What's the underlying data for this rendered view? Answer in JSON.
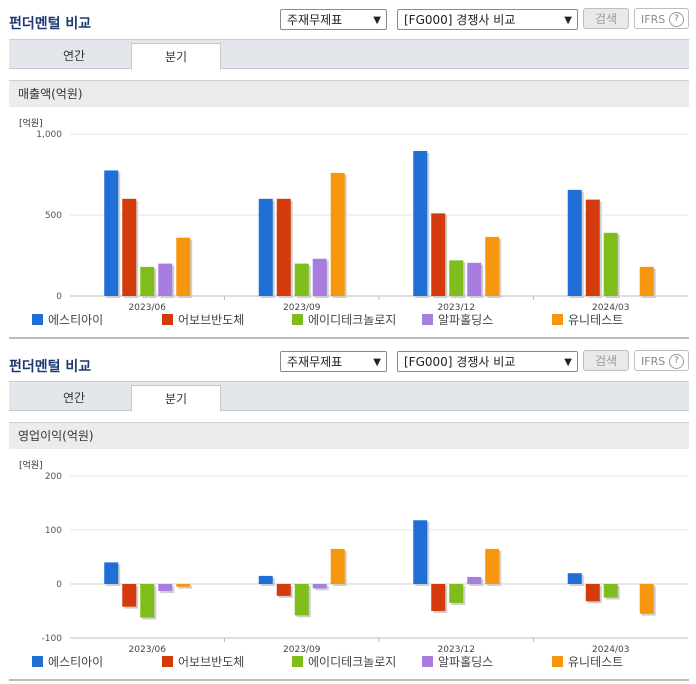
{
  "panels": [
    {
      "title": "펀더멘털 비교",
      "select_type": "주재무제표",
      "select_compare": "[FG000] 경쟁사 비교",
      "search_label": "검색",
      "ifrs_label": "IFRS",
      "ifrs_help": "?",
      "tabs": [
        {
          "label": "연간"
        },
        {
          "label": "분기"
        }
      ],
      "active_tab": 1,
      "chart_header": "매출액(억원)"
    },
    {
      "title": "펀더멘털 비교",
      "select_type": "주재무제표",
      "select_compare": "[FG000] 경쟁사 비교",
      "search_label": "검색",
      "ifrs_label": "IFRS",
      "ifrs_help": "?",
      "tabs": [
        {
          "label": "연간"
        },
        {
          "label": "분기"
        }
      ],
      "active_tab": 1,
      "chart_header": "영업이익(억원)"
    }
  ],
  "chart_data": [
    {
      "type": "bar",
      "unit_label": "[억원]",
      "categories": [
        "2023/06",
        "2023/09",
        "2023/12",
        "2024/03"
      ],
      "ylim": [
        0,
        1000
      ],
      "yticks": [
        0,
        500,
        1000
      ],
      "ytick_labels": [
        "0",
        "500",
        "1,000"
      ],
      "grid": true,
      "legend_position": "bottom",
      "series": [
        {
          "name": "에스티아이",
          "color": "#1f6fd6",
          "values": [
            775,
            600,
            895,
            655
          ]
        },
        {
          "name": "어보브반도체",
          "color": "#d33a0c",
          "values": [
            600,
            600,
            510,
            595
          ]
        },
        {
          "name": "에이디테크놀로지",
          "color": "#7fbd1b",
          "values": [
            180,
            200,
            220,
            390
          ]
        },
        {
          "name": "알파홀딩스",
          "color": "#a77de0",
          "values": [
            200,
            230,
            205,
            null
          ]
        },
        {
          "name": "유니테스트",
          "color": "#f5960c",
          "values": [
            360,
            760,
            365,
            180
          ]
        }
      ]
    },
    {
      "type": "bar",
      "unit_label": "[억원]",
      "categories": [
        "2023/06",
        "2023/09",
        "2023/12",
        "2024/03"
      ],
      "ylim": [
        -100,
        200
      ],
      "yticks": [
        -100,
        0,
        100,
        200
      ],
      "ytick_labels": [
        "-100",
        "0",
        "100",
        "200"
      ],
      "grid": true,
      "legend_position": "bottom",
      "series": [
        {
          "name": "에스티아이",
          "color": "#1f6fd6",
          "values": [
            40,
            15,
            118,
            20
          ]
        },
        {
          "name": "어보브반도체",
          "color": "#d33a0c",
          "values": [
            -42,
            -22,
            -50,
            -32
          ]
        },
        {
          "name": "에이디테크놀로지",
          "color": "#7fbd1b",
          "values": [
            -62,
            -58,
            -35,
            -25
          ]
        },
        {
          "name": "알파홀딩스",
          "color": "#a77de0",
          "values": [
            -13,
            -8,
            13,
            null
          ]
        },
        {
          "name": "유니테스트",
          "color": "#f5960c",
          "values": [
            -5,
            65,
            65,
            -55
          ]
        }
      ]
    }
  ]
}
